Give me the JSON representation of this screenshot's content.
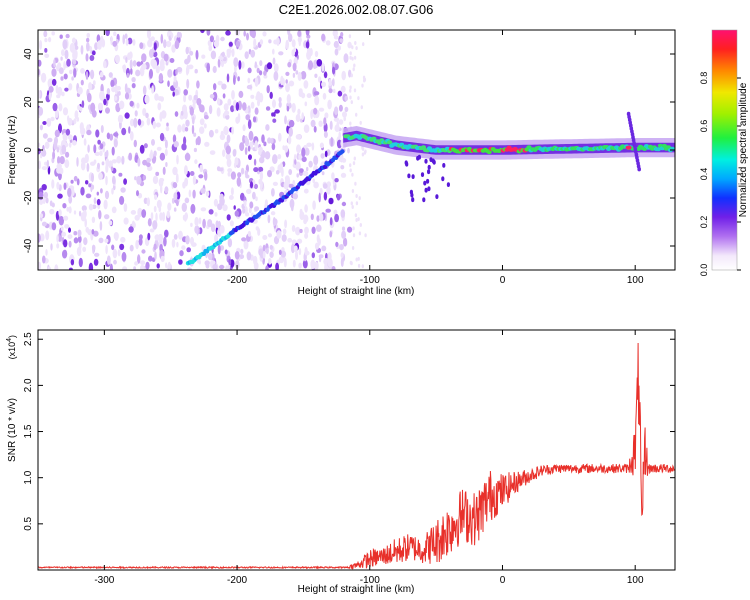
{
  "title": "C2E1.2026.002.08.07.G06",
  "chart_data": [
    {
      "type": "heatmap",
      "title": "C2E1.2026.002.08.07.G06",
      "xlabel": "Height of straight line (km)",
      "ylabel": "Frequency (Hz)",
      "xlim": [
        -350,
        130
      ],
      "ylim": [
        -50,
        50
      ],
      "x_ticks": [
        -300,
        -200,
        -100,
        0,
        100
      ],
      "y_ticks": [
        -40,
        -20,
        0,
        20,
        40
      ],
      "colorbar": {
        "label": "Normalized spectral amplitude",
        "range": [
          0,
          1
        ],
        "ticks": [
          "0.0",
          "0.2",
          "0.4",
          "0.6",
          "0.8"
        ],
        "tick_values": [
          0,
          0.2,
          0.4,
          0.6,
          0.8
        ]
      },
      "noise_region": {
        "x_from": -350,
        "x_to": -115
      },
      "features": [
        {
          "name": "diagonal-trace",
          "x": [
            -235,
            -200,
            -165,
            -130,
            -120
          ],
          "freq": [
            -47,
            -33,
            -20,
            -5,
            0
          ]
        },
        {
          "name": "main-trace",
          "x": [
            -120,
            -110,
            -80,
            -50,
            -20,
            0,
            50,
            100,
            130
          ],
          "freq": [
            5,
            6,
            2,
            0,
            0,
            0,
            0.5,
            1,
            1
          ]
        },
        {
          "name": "spike",
          "x": [
            95,
            100,
            103
          ],
          "freq": [
            15,
            0,
            -8
          ]
        }
      ]
    },
    {
      "type": "line",
      "xlabel": "Height of straight line (km)",
      "ylabel": "SNR (10 * v/v)",
      "y_multiplier": "(x10",
      "y_multiplier_exp": "4",
      "xlim": [
        -350,
        130
      ],
      "ylim": [
        0,
        2.6
      ],
      "x_ticks": [
        -300,
        -200,
        -100,
        0,
        100
      ],
      "y_ticks": [
        0.5,
        1.0,
        1.5,
        2.0,
        2.5
      ],
      "y_tick_labels": [
        "0.5",
        "1.0",
        "1.5",
        "2.0",
        "2.5"
      ],
      "series": [
        {
          "name": "SNR",
          "color": "#e8302a",
          "x": [
            -350,
            -200,
            -120,
            -110,
            -100,
            -90,
            -80,
            -70,
            -60,
            -50,
            -40,
            -30,
            -20,
            -10,
            0,
            10,
            20,
            30,
            40,
            60,
            80,
            90,
            95,
            100,
            103,
            105,
            107,
            110,
            120,
            130
          ],
          "y": [
            0.02,
            0.02,
            0.02,
            0.05,
            0.12,
            0.15,
            0.2,
            0.25,
            0.22,
            0.3,
            0.45,
            0.6,
            0.55,
            0.8,
            0.85,
            0.95,
            1.02,
            1.08,
            1.1,
            1.1,
            1.1,
            1.1,
            1.1,
            1.3,
            2.2,
            0.3,
            1.3,
            1.1,
            1.1,
            1.1
          ],
          "noise_band": [
            0.0,
            0.0,
            0.0,
            0.04,
            0.1,
            0.1,
            0.15,
            0.15,
            0.15,
            0.25,
            0.3,
            0.3,
            0.3,
            0.3,
            0.2,
            0.12,
            0.08,
            0.06,
            0.05,
            0.05,
            0.05,
            0.05,
            0.05,
            0.3,
            0.6,
            0.3,
            0.4,
            0.05,
            0.05,
            0.05
          ]
        }
      ]
    }
  ]
}
